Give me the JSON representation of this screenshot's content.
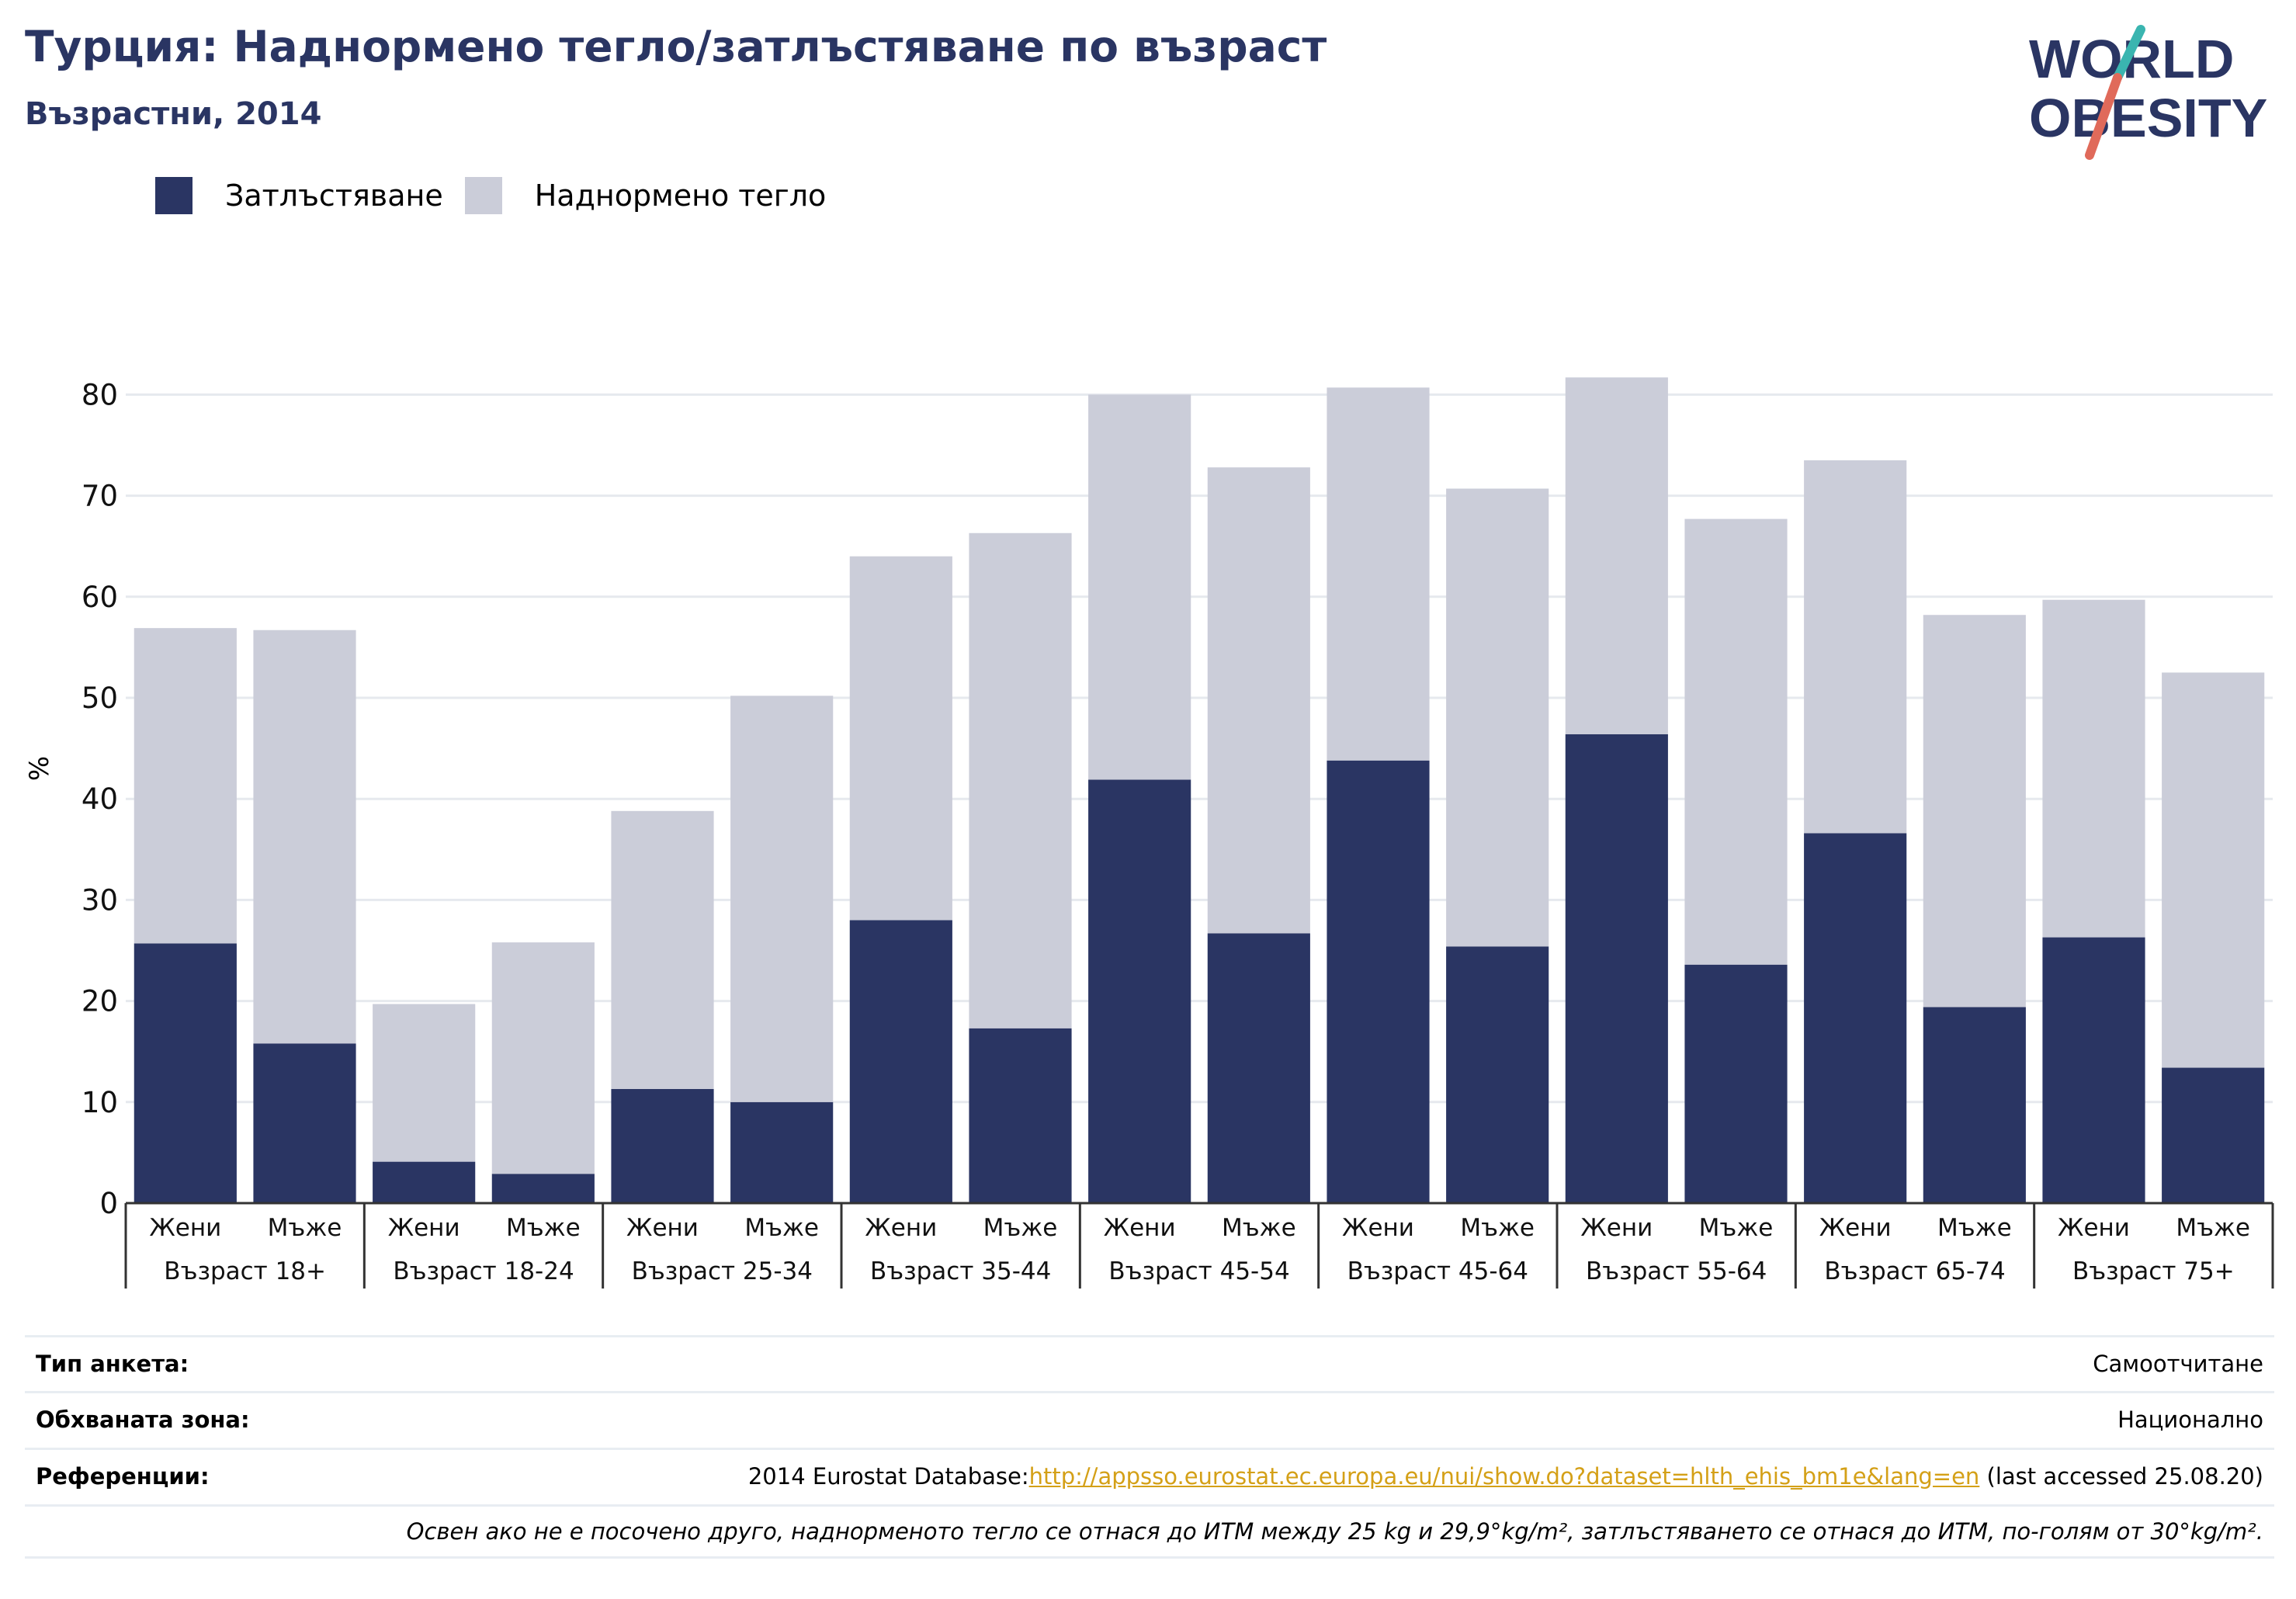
{
  "header": {
    "title": "Турция: Наднормено тегло/затлъстяване по възраст",
    "subtitle": "Възрастни, 2014"
  },
  "logo": {
    "line1": "WORLD",
    "line2": "OBESITY"
  },
  "colors": {
    "obesity": "#2a3563",
    "overweight": "#cbcdd9",
    "grid": "#e6e9ee",
    "axis": "#333333",
    "accent_teal": "#3ab5b0",
    "accent_red": "#e06a5a"
  },
  "chart_data": {
    "type": "bar",
    "stacked": true,
    "ylabel": "%",
    "ylim": [
      0,
      85
    ],
    "yticks": [
      0,
      10,
      20,
      30,
      40,
      50,
      60,
      70,
      80
    ],
    "grid": true,
    "legend_position": "top-left",
    "series": [
      {
        "name": "Затлъстяване",
        "color": "#2a3563",
        "values": [
          25.7,
          15.8,
          4.1,
          2.9,
          11.3,
          10.0,
          28.0,
          17.3,
          41.9,
          26.7,
          43.8,
          25.4,
          46.4,
          23.6,
          36.6,
          19.4,
          26.3,
          13.4
        ]
      },
      {
        "name": "Наднормено тегло",
        "color": "#cbcdd9",
        "values": [
          31.2,
          40.9,
          15.6,
          22.9,
          27.5,
          40.2,
          36.0,
          49.0,
          38.1,
          46.1,
          36.9,
          45.3,
          35.3,
          44.1,
          36.9,
          38.8,
          33.4,
          39.1
        ]
      }
    ],
    "sexes": [
      "Жени",
      "Мъже"
    ],
    "groups": [
      "Възраст 18+",
      "Възраст 18-24",
      "Възраст 25-34",
      "Възраст 35-44",
      "Възраст 45-54",
      "Възраст 45-64",
      "Възраст 55-64",
      "Възраст 65-74",
      "Възраст 75+"
    ]
  },
  "footer": {
    "survey_label": "Тип анкета:",
    "survey_value": "Самоотчитане",
    "area_label": "Обхваната зона:",
    "area_value": "Национално",
    "refs_label": "Референции:",
    "refs_prefix": "2014 Eurostat Database:",
    "refs_link": "http://appsso.eurostat.ec.europa.eu/nui/show.do?dataset=hlth_ehis_bm1e&lang=en",
    "refs_suffix": " (last accessed 25.08.20)",
    "note": "Освен ако не е посочено друго, наднорменото тегло се отнася до ИТМ между 25 kg и 29,9°kg/m², затлъстяването се отнася до ИТМ, по-голям от 30°kg/m²."
  }
}
